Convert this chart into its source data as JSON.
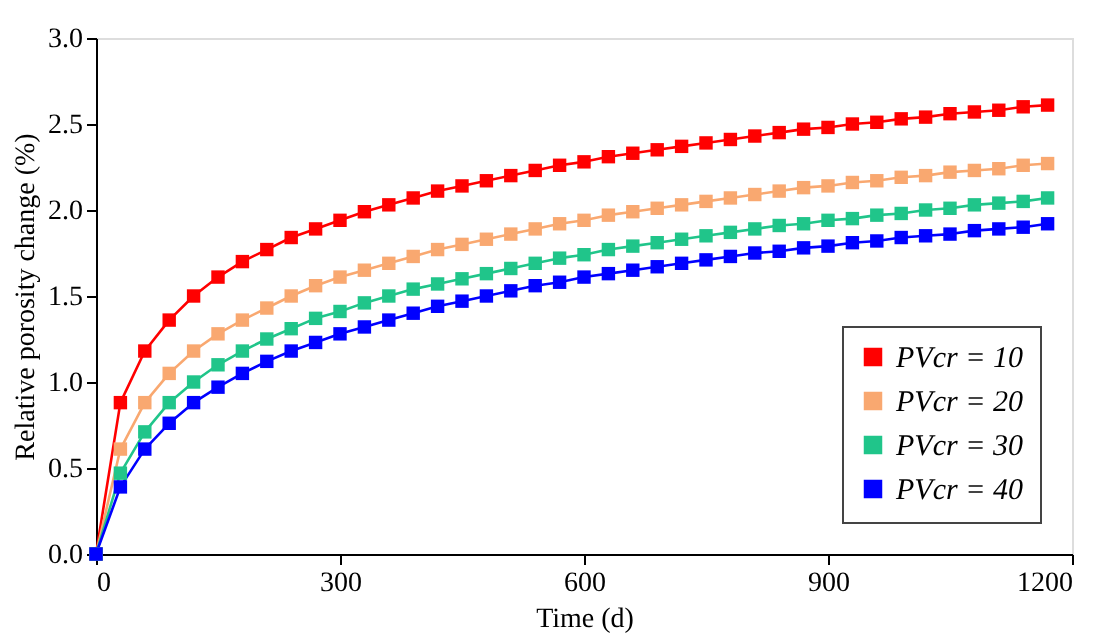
{
  "chart_data": {
    "type": "line",
    "xlabel": "Time (d)",
    "ylabel": "Relative porosity change (%)",
    "x": [
      0,
      30,
      60,
      90,
      120,
      150,
      180,
      210,
      240,
      270,
      300,
      330,
      360,
      390,
      420,
      450,
      480,
      510,
      540,
      570,
      600,
      630,
      660,
      690,
      720,
      750,
      780,
      810,
      840,
      870,
      900,
      930,
      960,
      990,
      1020,
      1050,
      1080,
      1110,
      1140,
      1170
    ],
    "series": [
      {
        "name": "PVcr = 10",
        "color": "#ff0000",
        "values": [
          0,
          0.88,
          1.18,
          1.36,
          1.5,
          1.61,
          1.7,
          1.77,
          1.84,
          1.89,
          1.94,
          1.99,
          2.03,
          2.07,
          2.11,
          2.14,
          2.17,
          2.2,
          2.23,
          2.26,
          2.28,
          2.31,
          2.33,
          2.35,
          2.37,
          2.39,
          2.41,
          2.43,
          2.45,
          2.47,
          2.48,
          2.5,
          2.51,
          2.53,
          2.54,
          2.56,
          2.57,
          2.58,
          2.6,
          2.61
        ]
      },
      {
        "name": "PVcr = 20",
        "color": "#f9a870",
        "values": [
          0,
          0.61,
          0.88,
          1.05,
          1.18,
          1.28,
          1.36,
          1.43,
          1.5,
          1.56,
          1.61,
          1.65,
          1.69,
          1.73,
          1.77,
          1.8,
          1.83,
          1.86,
          1.89,
          1.92,
          1.94,
          1.97,
          1.99,
          2.01,
          2.03,
          2.05,
          2.07,
          2.09,
          2.11,
          2.13,
          2.14,
          2.16,
          2.17,
          2.19,
          2.2,
          2.22,
          2.23,
          2.24,
          2.26,
          2.27
        ]
      },
      {
        "name": "PVcr = 30",
        "color": "#20c58a",
        "values": [
          0,
          0.47,
          0.71,
          0.88,
          1.0,
          1.1,
          1.18,
          1.25,
          1.31,
          1.37,
          1.41,
          1.46,
          1.5,
          1.54,
          1.57,
          1.6,
          1.63,
          1.66,
          1.69,
          1.72,
          1.74,
          1.77,
          1.79,
          1.81,
          1.83,
          1.85,
          1.87,
          1.89,
          1.91,
          1.92,
          1.94,
          1.95,
          1.97,
          1.98,
          2.0,
          2.01,
          2.03,
          2.04,
          2.05,
          2.07
        ]
      },
      {
        "name": "PVcr = 40",
        "color": "#0000ff",
        "values": [
          0,
          0.39,
          0.61,
          0.76,
          0.88,
          0.97,
          1.05,
          1.12,
          1.18,
          1.23,
          1.28,
          1.32,
          1.36,
          1.4,
          1.44,
          1.47,
          1.5,
          1.53,
          1.56,
          1.58,
          1.61,
          1.63,
          1.65,
          1.67,
          1.69,
          1.71,
          1.73,
          1.75,
          1.76,
          1.78,
          1.79,
          1.81,
          1.82,
          1.84,
          1.85,
          1.86,
          1.88,
          1.89,
          1.9,
          1.92
        ]
      }
    ],
    "xlim": [
      0,
      1200
    ],
    "xticks": [
      0,
      300,
      600,
      900,
      1200
    ],
    "ylim": [
      0,
      3.0
    ],
    "yticks": [
      {
        "value": 0,
        "label": "0.0"
      },
      {
        "value": 0.5,
        "label": "0.5"
      },
      {
        "value": 1.0,
        "label": "1.0"
      },
      {
        "value": 1.5,
        "label": "1.5"
      },
      {
        "value": 2.0,
        "label": "2.0"
      },
      {
        "value": 2.5,
        "label": "2.5"
      },
      {
        "value": 3.0,
        "label": "3.0"
      }
    ],
    "grid": false,
    "legend": "bottom right",
    "marker": "square",
    "line_style": "solid"
  }
}
